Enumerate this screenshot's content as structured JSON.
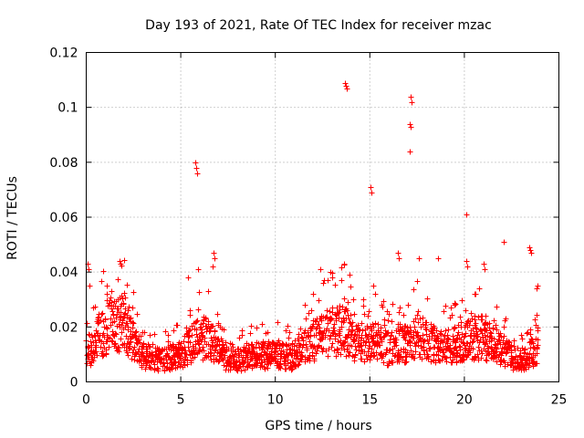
{
  "chart_data": {
    "type": "scatter",
    "title": "Day 193 of 2021, Rate Of TEC Index for receiver mzac",
    "xlabel": "GPS time / hours",
    "ylabel": "ROTI / TECUs",
    "xlim": [
      0,
      25
    ],
    "ylim": [
      0,
      0.12
    ],
    "xticks": [
      0,
      5,
      10,
      15,
      20,
      25
    ],
    "xtick_labels": [
      "0",
      "5",
      "10",
      "15",
      "20",
      "25"
    ],
    "yticks": [
      0,
      0.02,
      0.04,
      0.06,
      0.08,
      0.1,
      0.12
    ],
    "ytick_labels": [
      "0",
      "0.02",
      "0.04",
      "0.06",
      "0.08",
      "0.1",
      "0.12"
    ],
    "grid": true,
    "marker": "plus",
    "color": "#ff0000",
    "series": [
      {
        "name": "ROTI",
        "baseline": [
          [
            0.0,
            0.012
          ],
          [
            0.3,
            0.014
          ],
          [
            0.6,
            0.018
          ],
          [
            1.0,
            0.022
          ],
          [
            1.5,
            0.024
          ],
          [
            2.0,
            0.024
          ],
          [
            2.3,
            0.02
          ],
          [
            2.7,
            0.013
          ],
          [
            3.2,
            0.01
          ],
          [
            4.0,
            0.009
          ],
          [
            5.0,
            0.011
          ],
          [
            5.6,
            0.016
          ],
          [
            6.2,
            0.018
          ],
          [
            6.8,
            0.015
          ],
          [
            7.3,
            0.01
          ],
          [
            8.0,
            0.009
          ],
          [
            9.0,
            0.011
          ],
          [
            10.0,
            0.011
          ],
          [
            10.8,
            0.01
          ],
          [
            11.5,
            0.014
          ],
          [
            12.0,
            0.017
          ],
          [
            12.5,
            0.019
          ],
          [
            13.0,
            0.02
          ],
          [
            13.6,
            0.022
          ],
          [
            14.0,
            0.019
          ],
          [
            14.5,
            0.014
          ],
          [
            15.0,
            0.017
          ],
          [
            15.5,
            0.016
          ],
          [
            16.0,
            0.013
          ],
          [
            16.5,
            0.016
          ],
          [
            17.0,
            0.015
          ],
          [
            17.5,
            0.02
          ],
          [
            18.0,
            0.016
          ],
          [
            18.5,
            0.015
          ],
          [
            19.0,
            0.014
          ],
          [
            19.5,
            0.015
          ],
          [
            20.0,
            0.017
          ],
          [
            20.5,
            0.018
          ],
          [
            21.0,
            0.018
          ],
          [
            21.5,
            0.015
          ],
          [
            22.0,
            0.013
          ],
          [
            22.5,
            0.01
          ],
          [
            23.0,
            0.009
          ],
          [
            23.5,
            0.011
          ],
          [
            23.9,
            0.015
          ]
        ],
        "spikes": [
          [
            0.05,
            0.043
          ],
          [
            0.1,
            0.041
          ],
          [
            0.15,
            0.035
          ],
          [
            1.1,
            0.035
          ],
          [
            1.75,
            0.044
          ],
          [
            1.8,
            0.043
          ],
          [
            5.4,
            0.038
          ],
          [
            5.75,
            0.08
          ],
          [
            5.8,
            0.078
          ],
          [
            5.85,
            0.076
          ],
          [
            5.9,
            0.041
          ],
          [
            6.75,
            0.047
          ],
          [
            6.8,
            0.045
          ],
          [
            6.7,
            0.042
          ],
          [
            12.4,
            0.041
          ],
          [
            12.9,
            0.04
          ],
          [
            13.7,
            0.109
          ],
          [
            13.75,
            0.108
          ],
          [
            13.8,
            0.107
          ],
          [
            13.65,
            0.043
          ],
          [
            15.05,
            0.071
          ],
          [
            15.1,
            0.069
          ],
          [
            15.2,
            0.035
          ],
          [
            16.5,
            0.047
          ],
          [
            16.55,
            0.045
          ],
          [
            17.15,
            0.104
          ],
          [
            17.2,
            0.102
          ],
          [
            17.1,
            0.094
          ],
          [
            17.15,
            0.093
          ],
          [
            17.1,
            0.084
          ],
          [
            17.6,
            0.045
          ],
          [
            18.6,
            0.045
          ],
          [
            20.1,
            0.061
          ],
          [
            20.1,
            0.044
          ],
          [
            20.15,
            0.042
          ],
          [
            21.0,
            0.043
          ],
          [
            21.05,
            0.041
          ],
          [
            22.1,
            0.051
          ],
          [
            23.45,
            0.049
          ],
          [
            23.5,
            0.048
          ],
          [
            23.55,
            0.047
          ],
          [
            23.85,
            0.035
          ],
          [
            23.8,
            0.034
          ]
        ]
      }
    ]
  }
}
